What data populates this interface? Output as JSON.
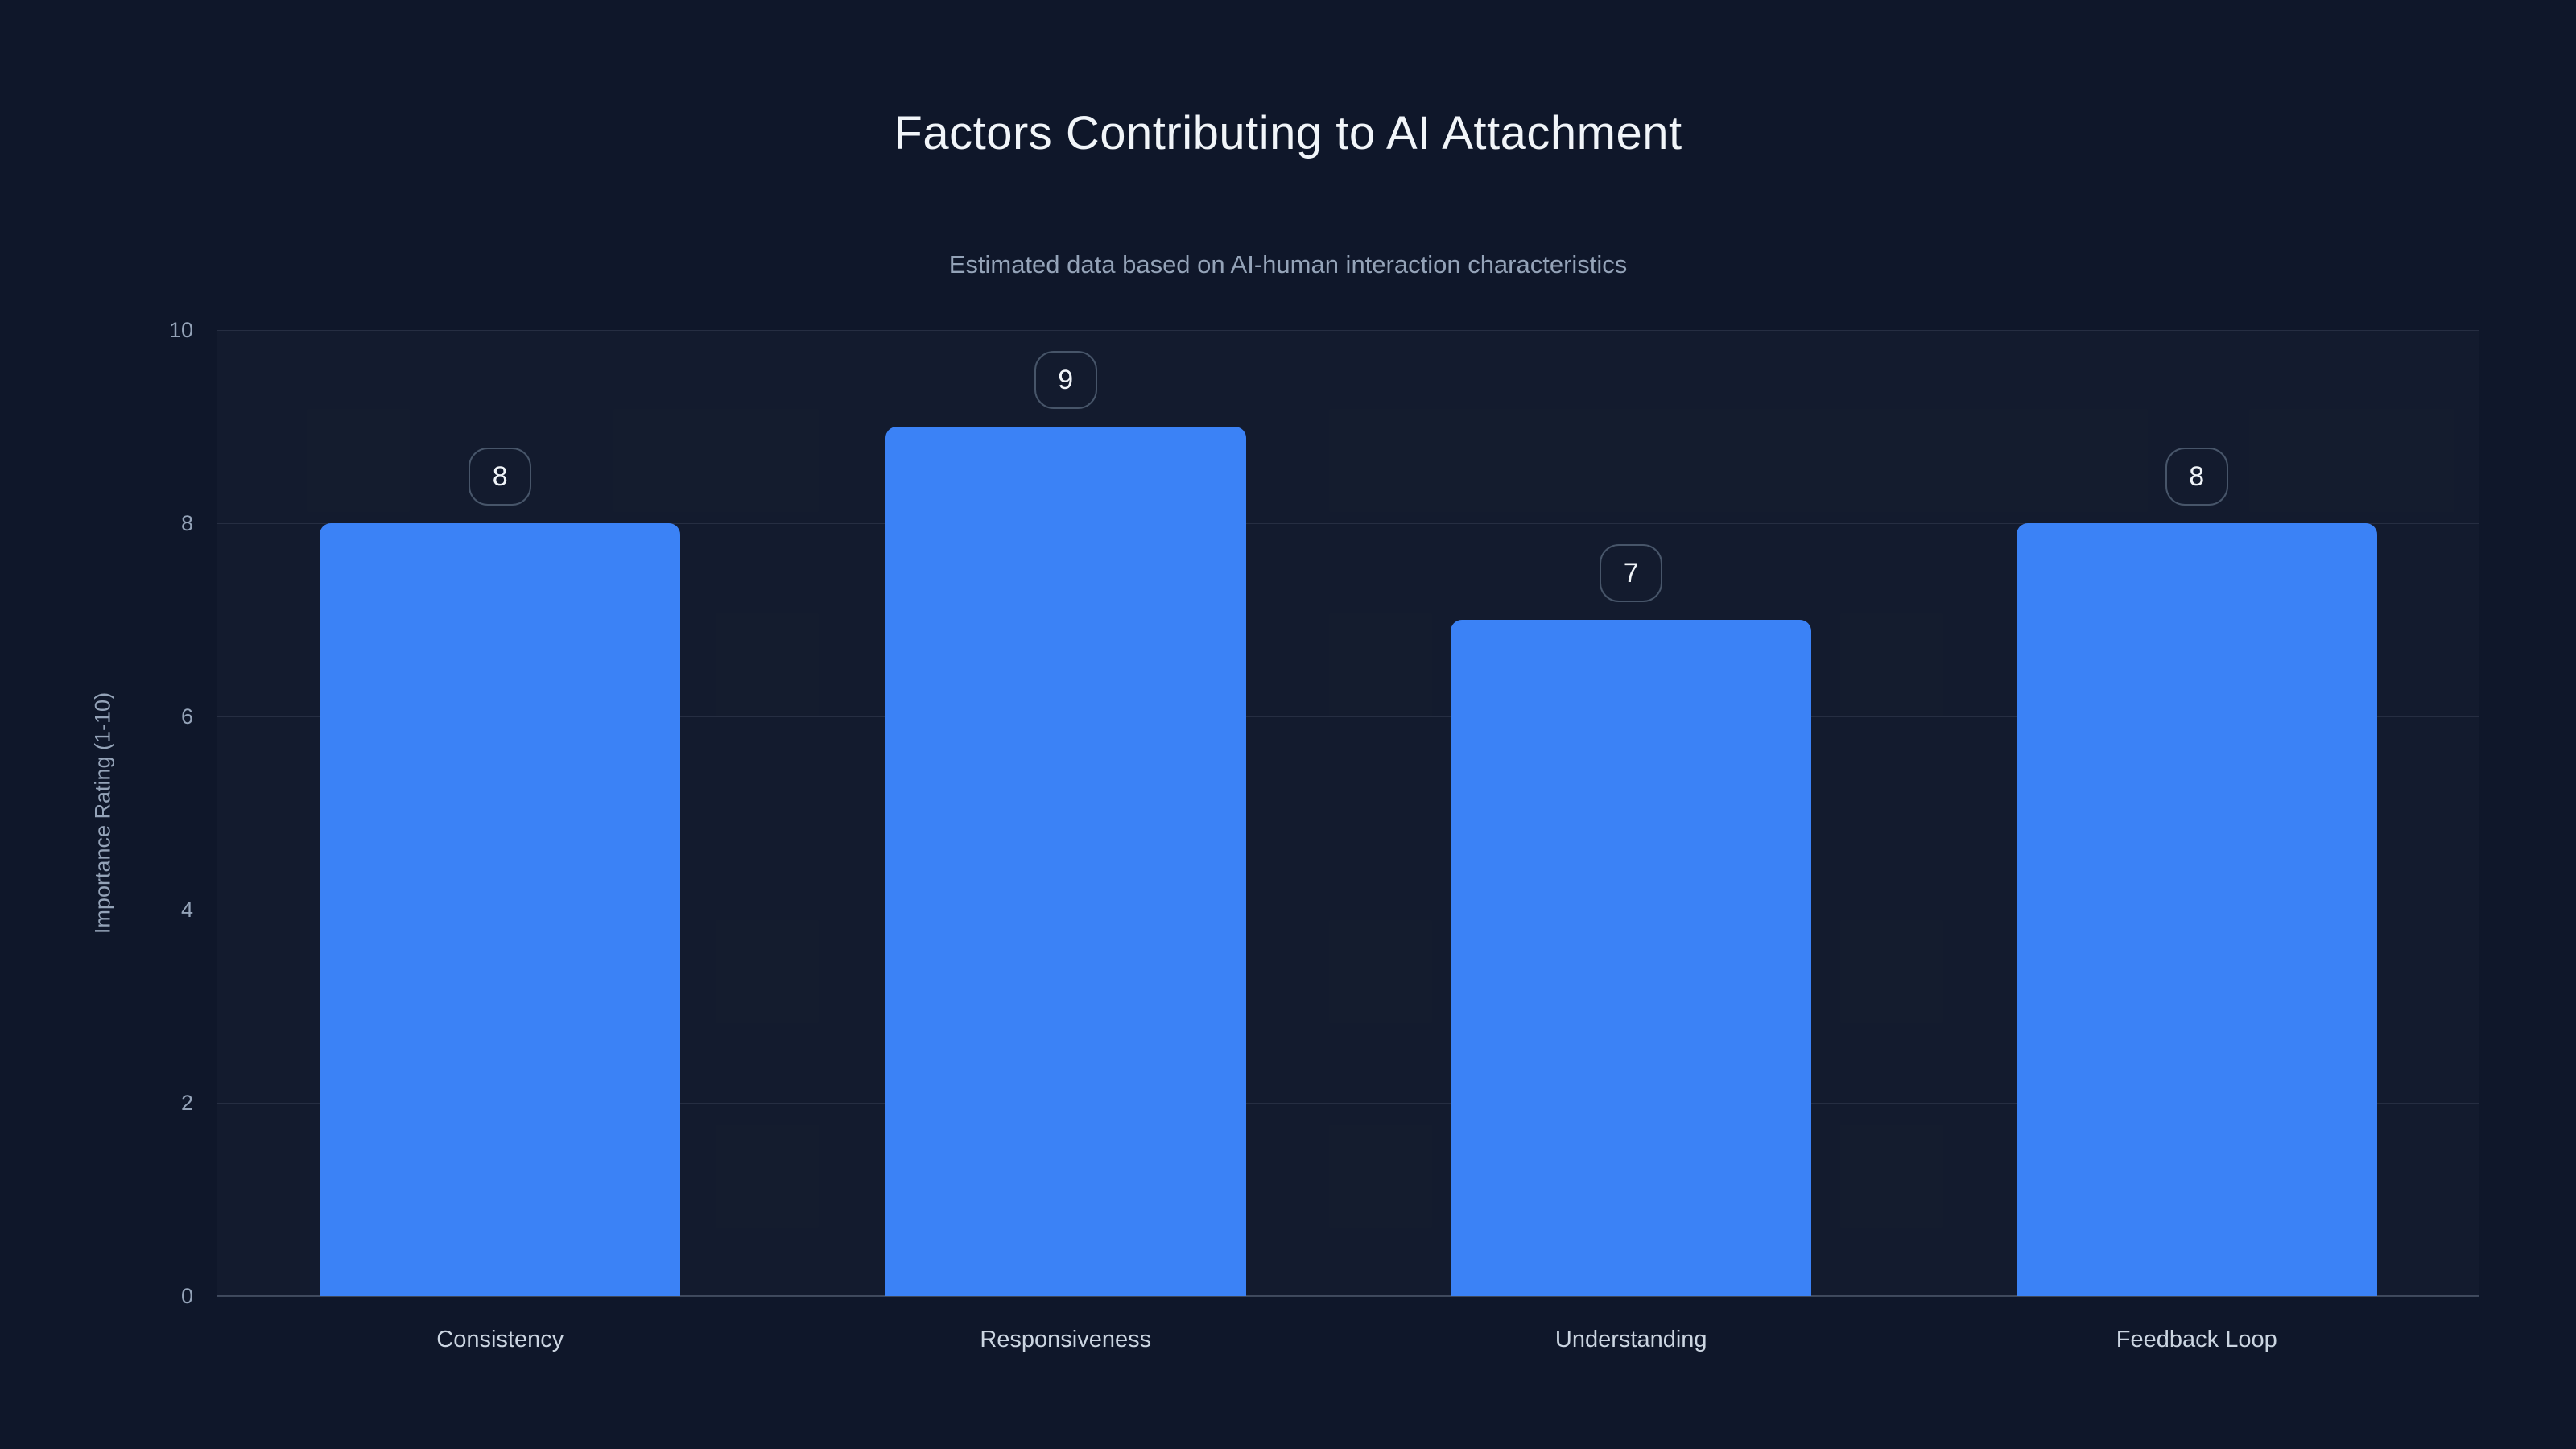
{
  "chart": {
    "title": "Factors Contributing to AI Attachment",
    "subtitle": "Estimated data based on AI-human interaction characteristics"
  },
  "chart_data": {
    "type": "bar",
    "title": "Factors Contributing to AI Attachment",
    "subtitle": "Estimated data based on AI-human interaction characteristics",
    "categories": [
      "Consistency",
      "Responsiveness",
      "Understanding",
      "Feedback Loop"
    ],
    "values": [
      8,
      9,
      7,
      8
    ],
    "value_labels": [
      "8",
      "9",
      "7",
      "8"
    ],
    "xlabel": "",
    "ylabel": "Importance Rating (1-10)",
    "ylim": [
      0,
      10
    ],
    "yticks": [
      "0",
      "2",
      "4",
      "6",
      "8",
      "10"
    ],
    "grid": true,
    "legend": false,
    "legend_position": "none",
    "colors": {
      "background": "#0f172a",
      "bar": "#3b82f6",
      "title_text": "#f1f5f9",
      "subtitle_text": "#94a3b8",
      "axis_text": "#94a3b8",
      "category_text": "#cbd5e1",
      "badge_border": "#475569",
      "badge_text": "#f1f5f9",
      "gridline": "rgba(148,163,184,0.15)"
    }
  }
}
